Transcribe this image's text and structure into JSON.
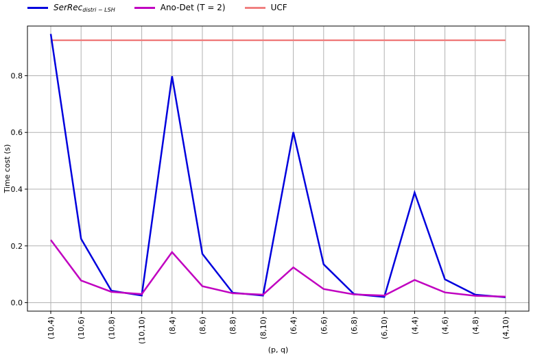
{
  "chart_data": {
    "type": "line",
    "title": "",
    "xlabel": "(p, q)",
    "ylabel": "Time cost (s)",
    "ylim": [
      -0.03,
      0.975
    ],
    "yticks": [
      0.0,
      0.2,
      0.4,
      0.6,
      0.8
    ],
    "ytick_labels": [
      "0.0",
      "0.2",
      "0.4",
      "0.6",
      "0.8"
    ],
    "grid": true,
    "legend_position": "top-left",
    "categories": [
      "(10,4)",
      "(10,6)",
      "(10,8)",
      "(10,10)",
      "(8,4)",
      "(8,6)",
      "(8,8)",
      "(8,10)",
      "(6,4)",
      "(6,6)",
      "(6,8)",
      "(6,10)",
      "(4,4)",
      "(4,6)",
      "(4,8)",
      "(4,10)"
    ],
    "series": [
      {
        "name": "SerRec",
        "name_sub": "distri − LSH",
        "color": "#0000dd",
        "values": [
          0.947,
          0.225,
          0.042,
          0.025,
          0.798,
          0.172,
          0.035,
          0.025,
          0.601,
          0.135,
          0.03,
          0.02,
          0.388,
          0.082,
          0.028,
          0.019
        ]
      },
      {
        "name": "Ano-Det (T = 2)",
        "color": "#c000c0",
        "values": [
          0.221,
          0.078,
          0.038,
          0.03,
          0.178,
          0.058,
          0.033,
          0.028,
          0.124,
          0.048,
          0.029,
          0.025,
          0.08,
          0.036,
          0.024,
          0.021
        ]
      },
      {
        "name": "UCF",
        "color": "#f08080",
        "values": [
          0.925,
          0.925,
          0.925,
          0.925,
          0.925,
          0.925,
          0.925,
          0.925,
          0.925,
          0.925,
          0.925,
          0.925,
          0.925,
          0.925,
          0.925,
          0.925
        ]
      }
    ]
  }
}
